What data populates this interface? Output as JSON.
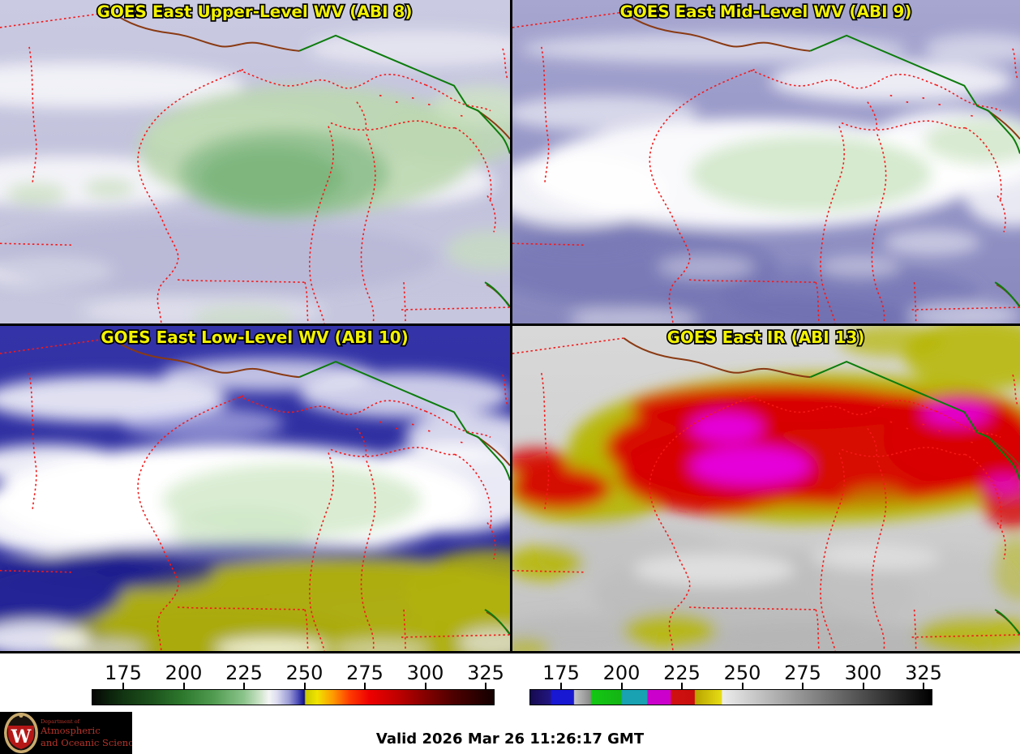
{
  "panels": [
    {
      "id": "abi8",
      "title": "GOES East Upper-Level WV (ABI 8)"
    },
    {
      "id": "abi9",
      "title": "GOES East Mid-Level WV (ABI 9)"
    },
    {
      "id": "abi10",
      "title": "GOES East Low-Level WV (ABI 10)"
    },
    {
      "id": "abi13",
      "title": "GOES East IR (ABI 13)"
    }
  ],
  "title_color": "#f2f200",
  "map_colors": {
    "state_borders": "#f51818",
    "international_border": "#0c7c0c",
    "shoreline": "#8a3a12"
  },
  "colorbars": [
    {
      "id": "wv",
      "label_values": [
        "175",
        "200",
        "225",
        "250",
        "275",
        "300",
        "325"
      ],
      "stops": [
        {
          "p": 0.0,
          "c": "#060606"
        },
        {
          "p": 0.04,
          "c": "#0b200b"
        },
        {
          "p": 0.078,
          "c": "#123512"
        },
        {
          "p": 0.15,
          "c": "#1d521d"
        },
        {
          "p": 0.228,
          "c": "#2e7a2e"
        },
        {
          "p": 0.3,
          "c": "#4f9a4f"
        },
        {
          "p": 0.378,
          "c": "#8cc48c"
        },
        {
          "p": 0.415,
          "c": "#c8e2c4"
        },
        {
          "p": 0.44,
          "c": "#f4f6f4"
        },
        {
          "p": 0.46,
          "c": "#dcdcf0"
        },
        {
          "p": 0.49,
          "c": "#9b9bd6"
        },
        {
          "p": 0.51,
          "c": "#5555bb"
        },
        {
          "p": 0.525,
          "c": "#1b1b96"
        },
        {
          "p": 0.528,
          "c": "#0f0f78"
        },
        {
          "p": 0.531,
          "c": "#caca00"
        },
        {
          "p": 0.56,
          "c": "#f0e400"
        },
        {
          "p": 0.6,
          "c": "#ff9900"
        },
        {
          "p": 0.64,
          "c": "#ff3c00"
        },
        {
          "p": 0.69,
          "c": "#ee0000"
        },
        {
          "p": 0.76,
          "c": "#c00000"
        },
        {
          "p": 0.828,
          "c": "#850000"
        },
        {
          "p": 0.9,
          "c": "#4d0000"
        },
        {
          "p": 0.978,
          "c": "#200000"
        },
        {
          "p": 1.0,
          "c": "#140000"
        }
      ]
    },
    {
      "id": "ir",
      "label_values": [
        "175",
        "200",
        "225",
        "250",
        "275",
        "300",
        "325"
      ],
      "stops": [
        {
          "p": 0.0,
          "c": "#160a50"
        },
        {
          "p": 0.05,
          "c": "#221680"
        },
        {
          "p": 0.053,
          "c": "#1818d2"
        },
        {
          "p": 0.108,
          "c": "#1818d2"
        },
        {
          "p": 0.11,
          "c": "#c4c4c4"
        },
        {
          "p": 0.15,
          "c": "#8a8a8a"
        },
        {
          "p": 0.152,
          "c": "#14c814"
        },
        {
          "p": 0.226,
          "c": "#14b414"
        },
        {
          "p": 0.229,
          "c": "#18a2b2"
        },
        {
          "p": 0.291,
          "c": "#18a2b2"
        },
        {
          "p": 0.293,
          "c": "#cc00cc"
        },
        {
          "p": 0.349,
          "c": "#cc00cc"
        },
        {
          "p": 0.351,
          "c": "#d01010"
        },
        {
          "p": 0.409,
          "c": "#c80e0e"
        },
        {
          "p": 0.411,
          "c": "#b8a400"
        },
        {
          "p": 0.476,
          "c": "#e6dc14"
        },
        {
          "p": 0.479,
          "c": "#ececec"
        },
        {
          "p": 1.0,
          "c": "#000000"
        }
      ]
    }
  ],
  "footer": {
    "valid_text": "Valid 2026 Mar 26 11:26:17 GMT",
    "logo": {
      "dept_line": "Department of",
      "name_line1": "Atmospheric",
      "name_line2": "and Oceanic Sciences",
      "monogram": "W",
      "text_color": "#b5342a"
    }
  }
}
